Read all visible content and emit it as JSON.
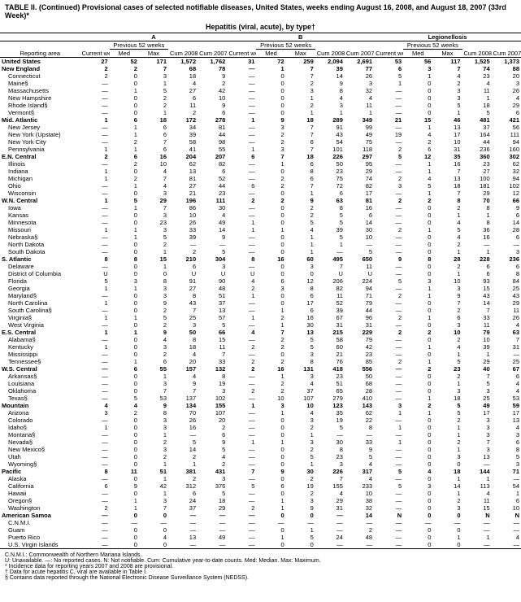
{
  "title": "TABLE II. (Continued) Provisional cases of selected notifiable diseases, United States, weeks ending August 16, 2008, and August 18, 2007 (33rd Week)*",
  "subtitle": "Hepatitis (viral, acute), by type†",
  "groups": [
    {
      "name": "A",
      "cols": [
        "Current week",
        "Med",
        "Max",
        "Cum 2008",
        "Cum 2007"
      ]
    },
    {
      "name": "B",
      "cols": [
        "Current week",
        "Med",
        "Max",
        "Cum 2008",
        "Cum 2007"
      ]
    },
    {
      "name": "Legionellosis",
      "cols": [
        "Current week",
        "Med",
        "Max",
        "Cum 2008",
        "Cum 2007"
      ]
    }
  ],
  "prev_label": "Previous 52 weeks",
  "area_label": "Reporting area",
  "rows": [
    {
      "n": "United States",
      "b": 1,
      "v": [
        "27",
        "52",
        "171",
        "1,572",
        "1,762",
        "31",
        "72",
        "259",
        "2,094",
        "2,691",
        "53",
        "56",
        "117",
        "1,525",
        "1,373"
      ]
    },
    {
      "n": "New England",
      "b": 1,
      "v": [
        "2",
        "2",
        "7",
        "68",
        "78",
        "—",
        "1",
        "7",
        "39",
        "77",
        "6",
        "3",
        "7",
        "74",
        "88"
      ]
    },
    {
      "n": "Connecticut",
      "v": [
        "2",
        "0",
        "3",
        "18",
        "9",
        "—",
        "0",
        "7",
        "14",
        "26",
        "5",
        "1",
        "4",
        "23",
        "20"
      ]
    },
    {
      "n": "Maine§",
      "v": [
        "—",
        "0",
        "1",
        "4",
        "2",
        "—",
        "0",
        "2",
        "9",
        "3",
        "1",
        "0",
        "2",
        "4",
        "3"
      ]
    },
    {
      "n": "Massachusetts",
      "v": [
        "—",
        "1",
        "5",
        "27",
        "42",
        "—",
        "0",
        "3",
        "8",
        "32",
        "—",
        "0",
        "3",
        "11",
        "26"
      ]
    },
    {
      "n": "New Hampshire",
      "v": [
        "—",
        "0",
        "2",
        "6",
        "10",
        "—",
        "0",
        "1",
        "4",
        "4",
        "—",
        "0",
        "3",
        "1",
        "4"
      ]
    },
    {
      "n": "Rhode Island§",
      "v": [
        "—",
        "0",
        "2",
        "11",
        "9",
        "—",
        "0",
        "2",
        "3",
        "11",
        "—",
        "0",
        "5",
        "18",
        "29"
      ]
    },
    {
      "n": "Vermont§",
      "v": [
        "—",
        "0",
        "1",
        "2",
        "6",
        "—",
        "0",
        "1",
        "1",
        "1",
        "—",
        "0",
        "1",
        "5",
        "6"
      ]
    },
    {
      "n": "Mid. Atlantic",
      "b": 1,
      "v": [
        "1",
        "6",
        "18",
        "172",
        "278",
        "1",
        "9",
        "18",
        "289",
        "349",
        "21",
        "15",
        "46",
        "481",
        "421"
      ]
    },
    {
      "n": "New Jersey",
      "v": [
        "—",
        "1",
        "6",
        "34",
        "81",
        "—",
        "3",
        "7",
        "91",
        "99",
        "—",
        "1",
        "13",
        "37",
        "56"
      ]
    },
    {
      "n": "New York (Upstate)",
      "v": [
        "—",
        "1",
        "6",
        "39",
        "44",
        "—",
        "2",
        "7",
        "43",
        "49",
        "19",
        "4",
        "17",
        "164",
        "111"
      ]
    },
    {
      "n": "New York City",
      "v": [
        "—",
        "2",
        "7",
        "58",
        "98",
        "—",
        "2",
        "6",
        "54",
        "75",
        "—",
        "2",
        "10",
        "44",
        "94"
      ]
    },
    {
      "n": "Pennsylvania",
      "v": [
        "1",
        "1",
        "6",
        "41",
        "55",
        "1",
        "3",
        "7",
        "101",
        "118",
        "2",
        "6",
        "31",
        "236",
        "160"
      ]
    },
    {
      "n": "E.N. Central",
      "b": 1,
      "v": [
        "2",
        "6",
        "16",
        "204",
        "207",
        "6",
        "7",
        "18",
        "226",
        "297",
        "5",
        "12",
        "35",
        "360",
        "302"
      ]
    },
    {
      "n": "Illinois",
      "v": [
        "—",
        "2",
        "10",
        "62",
        "82",
        "—",
        "1",
        "6",
        "50",
        "95",
        "—",
        "1",
        "16",
        "23",
        "62"
      ]
    },
    {
      "n": "Indiana",
      "v": [
        "1",
        "0",
        "4",
        "13",
        "6",
        "—",
        "0",
        "8",
        "23",
        "29",
        "—",
        "1",
        "7",
        "27",
        "32"
      ]
    },
    {
      "n": "Michigan",
      "v": [
        "1",
        "2",
        "7",
        "81",
        "52",
        "—",
        "2",
        "6",
        "75",
        "74",
        "2",
        "4",
        "13",
        "100",
        "94"
      ]
    },
    {
      "n": "Ohio",
      "v": [
        "—",
        "1",
        "4",
        "27",
        "44",
        "6",
        "2",
        "7",
        "72",
        "82",
        "3",
        "5",
        "18",
        "181",
        "102"
      ]
    },
    {
      "n": "Wisconsin",
      "v": [
        "—",
        "0",
        "3",
        "21",
        "23",
        "—",
        "0",
        "1",
        "6",
        "17",
        "—",
        "1",
        "7",
        "29",
        "12"
      ]
    },
    {
      "n": "W.N. Central",
      "b": 1,
      "v": [
        "1",
        "5",
        "29",
        "196",
        "111",
        "2",
        "2",
        "9",
        "63",
        "81",
        "2",
        "2",
        "8",
        "70",
        "66"
      ]
    },
    {
      "n": "Iowa",
      "v": [
        "—",
        "1",
        "7",
        "86",
        "30",
        "—",
        "0",
        "2",
        "8",
        "16",
        "—",
        "0",
        "2",
        "8",
        "9"
      ]
    },
    {
      "n": "Kansas",
      "v": [
        "—",
        "0",
        "3",
        "10",
        "4",
        "—",
        "0",
        "2",
        "5",
        "6",
        "—",
        "0",
        "1",
        "1",
        "6"
      ]
    },
    {
      "n": "Minnesota",
      "v": [
        "—",
        "0",
        "23",
        "26",
        "49",
        "1",
        "0",
        "5",
        "5",
        "14",
        "—",
        "0",
        "4",
        "8",
        "14"
      ]
    },
    {
      "n": "Missouri",
      "v": [
        "1",
        "1",
        "3",
        "33",
        "14",
        "1",
        "1",
        "4",
        "39",
        "30",
        "2",
        "1",
        "5",
        "36",
        "28"
      ]
    },
    {
      "n": "Nebraska§",
      "v": [
        "—",
        "1",
        "5",
        "39",
        "9",
        "—",
        "0",
        "1",
        "5",
        "10",
        "—",
        "0",
        "4",
        "16",
        "6"
      ]
    },
    {
      "n": "North Dakota",
      "v": [
        "—",
        "0",
        "2",
        "—",
        "—",
        "—",
        "0",
        "1",
        "1",
        "—",
        "—",
        "0",
        "2",
        "—",
        "—"
      ]
    },
    {
      "n": "South Dakota",
      "v": [
        "—",
        "0",
        "1",
        "2",
        "5",
        "—",
        "0",
        "1",
        "—",
        "5",
        "—",
        "0",
        "1",
        "1",
        "3"
      ]
    },
    {
      "n": "S. Atlantic",
      "b": 1,
      "v": [
        "8",
        "8",
        "15",
        "210",
        "304",
        "8",
        "16",
        "60",
        "495",
        "650",
        "9",
        "8",
        "28",
        "228",
        "236"
      ]
    },
    {
      "n": "Delaware",
      "v": [
        "—",
        "0",
        "1",
        "6",
        "3",
        "—",
        "0",
        "3",
        "7",
        "11",
        "—",
        "0",
        "2",
        "6",
        "6"
      ]
    },
    {
      "n": "District of Columbia",
      "v": [
        "U",
        "0",
        "0",
        "U",
        "U",
        "U",
        "0",
        "0",
        "U",
        "U",
        "—",
        "0",
        "1",
        "6",
        "8"
      ]
    },
    {
      "n": "Florida",
      "v": [
        "5",
        "3",
        "8",
        "91",
        "90",
        "4",
        "6",
        "12",
        "206",
        "224",
        "5",
        "3",
        "10",
        "93",
        "84"
      ]
    },
    {
      "n": "Georgia",
      "v": [
        "1",
        "1",
        "3",
        "27",
        "48",
        "2",
        "3",
        "8",
        "82",
        "94",
        "—",
        "1",
        "3",
        "15",
        "25"
      ]
    },
    {
      "n": "Maryland§",
      "v": [
        "—",
        "0",
        "3",
        "8",
        "51",
        "1",
        "0",
        "6",
        "11",
        "71",
        "2",
        "1",
        "9",
        "43",
        "43"
      ]
    },
    {
      "n": "North Carolina",
      "v": [
        "1",
        "0",
        "9",
        "43",
        "37",
        "—",
        "0",
        "17",
        "52",
        "79",
        "—",
        "0",
        "7",
        "14",
        "29"
      ]
    },
    {
      "n": "South Carolina§",
      "v": [
        "—",
        "0",
        "2",
        "7",
        "13",
        "—",
        "1",
        "6",
        "39",
        "44",
        "—",
        "0",
        "2",
        "7",
        "11"
      ]
    },
    {
      "n": "Virginia§",
      "v": [
        "1",
        "1",
        "5",
        "25",
        "57",
        "1",
        "2",
        "16",
        "67",
        "96",
        "2",
        "1",
        "6",
        "33",
        "26"
      ]
    },
    {
      "n": "West Virginia",
      "v": [
        "—",
        "0",
        "2",
        "3",
        "5",
        "—",
        "1",
        "30",
        "31",
        "31",
        "—",
        "0",
        "3",
        "11",
        "4"
      ]
    },
    {
      "n": "E.S. Central",
      "b": 1,
      "v": [
        "1",
        "1",
        "9",
        "50",
        "66",
        "4",
        "7",
        "13",
        "215",
        "229",
        "2",
        "2",
        "10",
        "79",
        "63"
      ]
    },
    {
      "n": "Alabama§",
      "v": [
        "—",
        "0",
        "4",
        "8",
        "15",
        "—",
        "2",
        "5",
        "58",
        "79",
        "—",
        "0",
        "2",
        "10",
        "7"
      ]
    },
    {
      "n": "Kentucky",
      "v": [
        "1",
        "0",
        "3",
        "18",
        "11",
        "2",
        "2",
        "5",
        "60",
        "42",
        "—",
        "1",
        "4",
        "39",
        "31"
      ]
    },
    {
      "n": "Mississippi",
      "v": [
        "—",
        "0",
        "2",
        "4",
        "7",
        "—",
        "0",
        "3",
        "21",
        "23",
        "—",
        "0",
        "1",
        "1",
        "—"
      ]
    },
    {
      "n": "Tennessee§",
      "v": [
        "—",
        "1",
        "6",
        "20",
        "33",
        "2",
        "2",
        "8",
        "76",
        "85",
        "2",
        "1",
        "5",
        "29",
        "25"
      ]
    },
    {
      "n": "W.S. Central",
      "b": 1,
      "v": [
        "—",
        "6",
        "55",
        "157",
        "132",
        "2",
        "16",
        "131",
        "418",
        "556",
        "—",
        "2",
        "23",
        "40",
        "67"
      ]
    },
    {
      "n": "Arkansas§",
      "v": [
        "—",
        "0",
        "1",
        "4",
        "8",
        "—",
        "1",
        "3",
        "23",
        "50",
        "—",
        "0",
        "2",
        "7",
        "6"
      ]
    },
    {
      "n": "Louisiana",
      "v": [
        "—",
        "0",
        "3",
        "9",
        "19",
        "—",
        "2",
        "4",
        "51",
        "68",
        "—",
        "0",
        "1",
        "5",
        "4"
      ]
    },
    {
      "n": "Oklahoma",
      "v": [
        "—",
        "0",
        "7",
        "7",
        "3",
        "2",
        "2",
        "37",
        "65",
        "28",
        "—",
        "0",
        "3",
        "3",
        "4"
      ]
    },
    {
      "n": "Texas§",
      "v": [
        "—",
        "5",
        "53",
        "137",
        "102",
        "—",
        "10",
        "107",
        "279",
        "410",
        "—",
        "1",
        "18",
        "25",
        "53"
      ]
    },
    {
      "n": "Mountain",
      "b": 1,
      "v": [
        "4",
        "4",
        "9",
        "134",
        "155",
        "1",
        "3",
        "10",
        "123",
        "143",
        "3",
        "2",
        "5",
        "49",
        "59"
      ]
    },
    {
      "n": "Arizona",
      "v": [
        "3",
        "2",
        "8",
        "70",
        "107",
        "—",
        "1",
        "4",
        "35",
        "62",
        "1",
        "1",
        "5",
        "17",
        "17"
      ]
    },
    {
      "n": "Colorado",
      "v": [
        "—",
        "0",
        "3",
        "26",
        "20",
        "—",
        "0",
        "3",
        "19",
        "22",
        "—",
        "0",
        "2",
        "3",
        "13"
      ]
    },
    {
      "n": "Idaho§",
      "v": [
        "1",
        "0",
        "3",
        "16",
        "2",
        "—",
        "0",
        "2",
        "5",
        "8",
        "1",
        "0",
        "1",
        "3",
        "4"
      ]
    },
    {
      "n": "Montana§",
      "v": [
        "—",
        "0",
        "1",
        "—",
        "6",
        "—",
        "0",
        "1",
        "—",
        "—",
        "—",
        "0",
        "1",
        "3",
        "3"
      ]
    },
    {
      "n": "Nevada§",
      "v": [
        "—",
        "0",
        "2",
        "5",
        "9",
        "1",
        "1",
        "3",
        "30",
        "33",
        "1",
        "0",
        "2",
        "7",
        "6"
      ]
    },
    {
      "n": "New Mexico§",
      "v": [
        "—",
        "0",
        "3",
        "14",
        "5",
        "—",
        "0",
        "2",
        "8",
        "9",
        "—",
        "0",
        "1",
        "3",
        "8"
      ]
    },
    {
      "n": "Utah",
      "v": [
        "—",
        "0",
        "2",
        "2",
        "4",
        "—",
        "0",
        "5",
        "23",
        "5",
        "—",
        "0",
        "3",
        "13",
        "5"
      ]
    },
    {
      "n": "Wyoming§",
      "v": [
        "—",
        "0",
        "1",
        "1",
        "2",
        "—",
        "0",
        "1",
        "3",
        "4",
        "—",
        "0",
        "0",
        "—",
        "3"
      ]
    },
    {
      "n": "Pacific",
      "b": 1,
      "v": [
        "8",
        "11",
        "51",
        "381",
        "431",
        "7",
        "9",
        "30",
        "226",
        "317",
        "5",
        "4",
        "18",
        "144",
        "71"
      ]
    },
    {
      "n": "Alaska",
      "v": [
        "—",
        "0",
        "1",
        "2",
        "3",
        "—",
        "0",
        "2",
        "7",
        "4",
        "—",
        "0",
        "1",
        "1",
        "—"
      ]
    },
    {
      "n": "California",
      "v": [
        "6",
        "9",
        "42",
        "312",
        "376",
        "5",
        "6",
        "19",
        "155",
        "233",
        "5",
        "3",
        "14",
        "113",
        "54"
      ]
    },
    {
      "n": "Hawaii",
      "v": [
        "—",
        "0",
        "1",
        "6",
        "5",
        "—",
        "0",
        "2",
        "4",
        "10",
        "—",
        "0",
        "1",
        "4",
        "1"
      ]
    },
    {
      "n": "Oregon§",
      "v": [
        "—",
        "1",
        "3",
        "24",
        "18",
        "—",
        "1",
        "3",
        "29",
        "38",
        "—",
        "0",
        "2",
        "11",
        "6"
      ]
    },
    {
      "n": "Washington",
      "v": [
        "2",
        "1",
        "7",
        "37",
        "29",
        "2",
        "1",
        "9",
        "31",
        "32",
        "—",
        "0",
        "3",
        "15",
        "10"
      ]
    },
    {
      "n": "American Samoa",
      "b": 1,
      "v": [
        "—",
        "0",
        "0",
        "—",
        "—",
        "—",
        "0",
        "0",
        "—",
        "14",
        "N",
        "0",
        "0",
        "N",
        "N"
      ]
    },
    {
      "n": "C.N.M.I.",
      "v": [
        "—",
        "—",
        "—",
        "—",
        "—",
        "—",
        "—",
        "—",
        "—",
        "—",
        "—",
        "—",
        "—",
        "—",
        "—"
      ]
    },
    {
      "n": "Guam",
      "v": [
        "—",
        "0",
        "0",
        "—",
        "—",
        "—",
        "0",
        "1",
        "—",
        "2",
        "—",
        "0",
        "0",
        "—",
        "—"
      ]
    },
    {
      "n": "Puerto Rico",
      "v": [
        "—",
        "0",
        "4",
        "13",
        "49",
        "—",
        "1",
        "5",
        "24",
        "48",
        "—",
        "0",
        "1",
        "1",
        "4"
      ]
    },
    {
      "n": "U.S. Virgin Islands",
      "v": [
        "—",
        "0",
        "0",
        "—",
        "—",
        "—",
        "0",
        "0",
        "—",
        "—",
        "—",
        "0",
        "0",
        "—",
        "—"
      ]
    }
  ],
  "footnotes": [
    "C.N.M.I.: Commonwealth of Northern Mariana Islands.",
    "U: Unavailable.    —: No reported cases.    N: Not notifiable.    Cum: Cumulative year-to-date counts.    Med: Median.    Max: Maximum.",
    "* Incidence data for reporting years 2007 and 2008 are provisional.",
    "† Data for acute hepatitis C, viral are available in Table I.",
    "§ Contains data reported through the National Electronic Disease Surveillance System (NEDSS)."
  ]
}
